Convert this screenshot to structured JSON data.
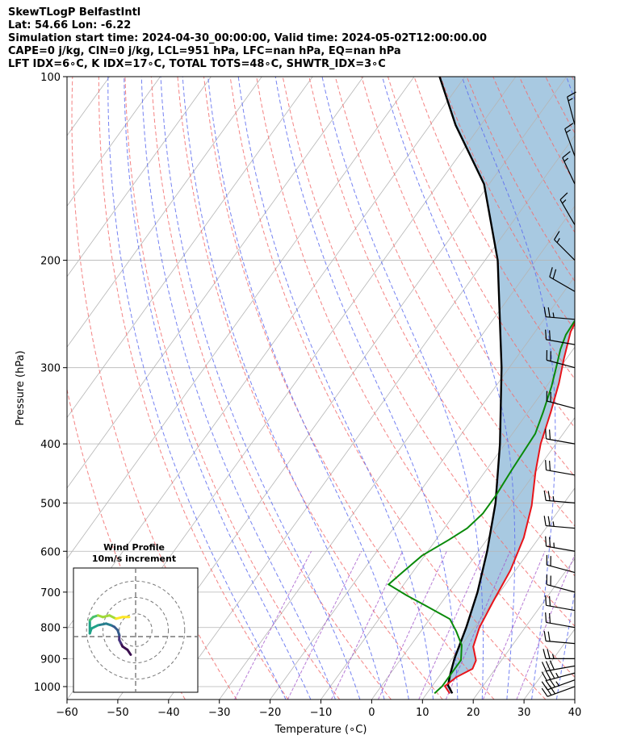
{
  "header": {
    "title": "SkewTLogP BelfastIntl",
    "location": "Lat: 54.66   Lon: -6.22",
    "times": "Simulation start time: 2024-04-30_00:00:00, Valid time: 2024-05-02T12:00:00.00",
    "indices_1": "CAPE=0 j/kg, CIN=0 j/kg, LCL=951 hPa, LFC=nan hPa, EQ=nan hPa",
    "indices_2": "LFT IDX=6∘C, K IDX=17∘C, TOTAL TOTS=48∘C, SHWTR_IDX=3∘C"
  },
  "chart_data": {
    "type": "line",
    "subtype": "skew-t log-p",
    "xlabel": "Temperature (∘C)",
    "ylabel": "Pressure (hPa)",
    "xlim": [
      -60,
      40
    ],
    "ylim": [
      1050,
      100
    ],
    "y_scale": "log",
    "x_ticks": [
      -60,
      -50,
      -40,
      -30,
      -20,
      -10,
      0,
      10,
      20,
      30,
      40
    ],
    "x_tick_labels": [
      "−60",
      "−50",
      "−40",
      "−30",
      "−20",
      "−10",
      "0",
      "10",
      "20",
      "30",
      "40"
    ],
    "y_ticks": [
      1000,
      900,
      800,
      700,
      600,
      500,
      400,
      300,
      200,
      100
    ],
    "y_tick_labels": [
      "1000",
      "900",
      "800",
      "700",
      "600",
      "500",
      "400",
      "300",
      "200",
      "100"
    ],
    "grid": true,
    "colors": {
      "temperature": "#e8141a",
      "dewpoint": "#0a8a0a",
      "parcel": "#000000",
      "cape_fill": "#a3c6df",
      "dry_adiabat": "#f26d6d",
      "moist_adiabat": "#5d6cf0",
      "isotherm": "#b5b5b5",
      "mixing_ratio": "#a050c8"
    },
    "series": [
      {
        "key": "temperature",
        "points": [
          [
            14.5,
            1026
          ],
          [
            12.5,
            998
          ],
          [
            13.5,
            965
          ],
          [
            15.5,
            935
          ],
          [
            15.0,
            906
          ],
          [
            12.5,
            860
          ],
          [
            11.0,
            800
          ],
          [
            10.0,
            725
          ],
          [
            9.0,
            645
          ],
          [
            7.0,
            570
          ],
          [
            4.0,
            505
          ],
          [
            0.0,
            445
          ],
          [
            -3.0,
            400
          ],
          [
            -5.5,
            355
          ],
          [
            -8.0,
            318
          ],
          [
            -10.5,
            290
          ],
          [
            -13.0,
            262
          ],
          [
            -14.0,
            240
          ],
          [
            -13.5,
            220
          ],
          [
            -11.0,
            206
          ],
          [
            -8.0,
            196
          ],
          [
            -6.0,
            184
          ],
          [
            -1.0,
            169
          ],
          [
            3.0,
            155
          ],
          [
            7.0,
            143
          ],
          [
            10.5,
            133
          ],
          [
            13.0,
            124
          ],
          [
            15.0,
            115
          ],
          [
            17.0,
            108
          ],
          [
            18.5,
            100
          ]
        ]
      },
      {
        "key": "dewpoint",
        "points": [
          [
            11.5,
            1026
          ],
          [
            12.0,
            998
          ],
          [
            12.0,
            965
          ],
          [
            12.0,
            905
          ],
          [
            10.0,
            855
          ],
          [
            7.0,
            812
          ],
          [
            4.0,
            775
          ],
          [
            -3.0,
            735
          ],
          [
            -8.0,
            708
          ],
          [
            -13.0,
            680
          ],
          [
            -12.0,
            650
          ],
          [
            -10.5,
            610
          ],
          [
            -7.5,
            575
          ],
          [
            -5.5,
            550
          ],
          [
            -4.5,
            520
          ],
          [
            -4.5,
            485
          ],
          [
            -5.0,
            440
          ],
          [
            -5.5,
            385
          ],
          [
            -7.0,
            355
          ],
          [
            -9.0,
            322
          ],
          [
            -11.0,
            297
          ],
          [
            -12.5,
            280
          ],
          [
            -13.5,
            265
          ],
          [
            -13.8,
            248
          ],
          [
            -13.0,
            228
          ],
          [
            -13.0,
            212
          ],
          [
            -14.0,
            198
          ],
          [
            -15.0,
            186
          ],
          [
            -15.5,
            177
          ],
          [
            -13.5,
            168
          ],
          [
            -11.0,
            155
          ],
          [
            -8.0,
            143
          ],
          [
            -5.0,
            133
          ],
          [
            -2.0,
            124
          ],
          [
            1.0,
            116
          ],
          [
            4.0,
            108
          ],
          [
            7.0,
            100
          ]
        ]
      },
      {
        "key": "parcel",
        "points": [
          [
            15.0,
            1026
          ],
          [
            14.0,
            1010
          ],
          [
            13.0,
            995
          ],
          [
            11.8,
            951
          ],
          [
            10.5,
            900
          ],
          [
            8.4,
            800
          ],
          [
            5.6,
            700
          ],
          [
            1.7,
            600
          ],
          [
            -3.5,
            500
          ],
          [
            -11.0,
            400
          ],
          [
            -21.5,
            300
          ],
          [
            -37.5,
            200
          ],
          [
            -51.0,
            150
          ],
          [
            -65.0,
            120
          ],
          [
            -75.0,
            100
          ]
        ]
      }
    ],
    "wind_barbs": [
      {
        "p": 1000,
        "speed": 30,
        "dir": 250
      },
      {
        "p": 975,
        "speed": 35,
        "dir": 250
      },
      {
        "p": 950,
        "speed": 35,
        "dir": 255
      },
      {
        "p": 925,
        "speed": 30,
        "dir": 260
      },
      {
        "p": 900,
        "speed": 25,
        "dir": 270
      },
      {
        "p": 850,
        "speed": 20,
        "dir": 275
      },
      {
        "p": 800,
        "speed": 20,
        "dir": 280
      },
      {
        "p": 750,
        "speed": 20,
        "dir": 280
      },
      {
        "p": 700,
        "speed": 20,
        "dir": 285
      },
      {
        "p": 650,
        "speed": 20,
        "dir": 285
      },
      {
        "p": 600,
        "speed": 25,
        "dir": 280
      },
      {
        "p": 550,
        "speed": 25,
        "dir": 275
      },
      {
        "p": 500,
        "speed": 25,
        "dir": 275
      },
      {
        "p": 450,
        "speed": 20,
        "dir": 280
      },
      {
        "p": 400,
        "speed": 20,
        "dir": 280
      },
      {
        "p": 350,
        "speed": 20,
        "dir": 285
      },
      {
        "p": 300,
        "speed": 20,
        "dir": 285
      },
      {
        "p": 275,
        "speed": 20,
        "dir": 280
      },
      {
        "p": 250,
        "speed": 25,
        "dir": 275
      },
      {
        "p": 225,
        "speed": 20,
        "dir": 300
      },
      {
        "p": 200,
        "speed": 15,
        "dir": 315
      },
      {
        "p": 175,
        "speed": 15,
        "dir": 330
      },
      {
        "p": 150,
        "speed": 15,
        "dir": 335
      },
      {
        "p": 135,
        "speed": 15,
        "dir": 340
      },
      {
        "p": 120,
        "speed": 15,
        "dir": 345
      }
    ],
    "hodograph": {
      "title": "Wind Profile",
      "subtitle": "10m/s increment",
      "ring_spacing": 10,
      "rings": 3,
      "points": [
        [
          -3,
          -15
        ],
        [
          -5,
          -12
        ],
        [
          -8,
          -10
        ],
        [
          -9,
          -8
        ],
        [
          -10,
          -6
        ],
        [
          -10,
          -3
        ],
        [
          -11,
          0
        ],
        [
          -13,
          2
        ],
        [
          -15,
          3
        ],
        [
          -18,
          4
        ],
        [
          -23,
          3
        ],
        [
          -27,
          1
        ],
        [
          -28,
          -2
        ],
        [
          -28,
          6
        ],
        [
          -26,
          8
        ],
        [
          -23,
          9
        ],
        [
          -20,
          8
        ],
        [
          -16,
          9
        ],
        [
          -12,
          7
        ],
        [
          -8,
          8
        ],
        [
          -4,
          8
        ]
      ]
    }
  }
}
